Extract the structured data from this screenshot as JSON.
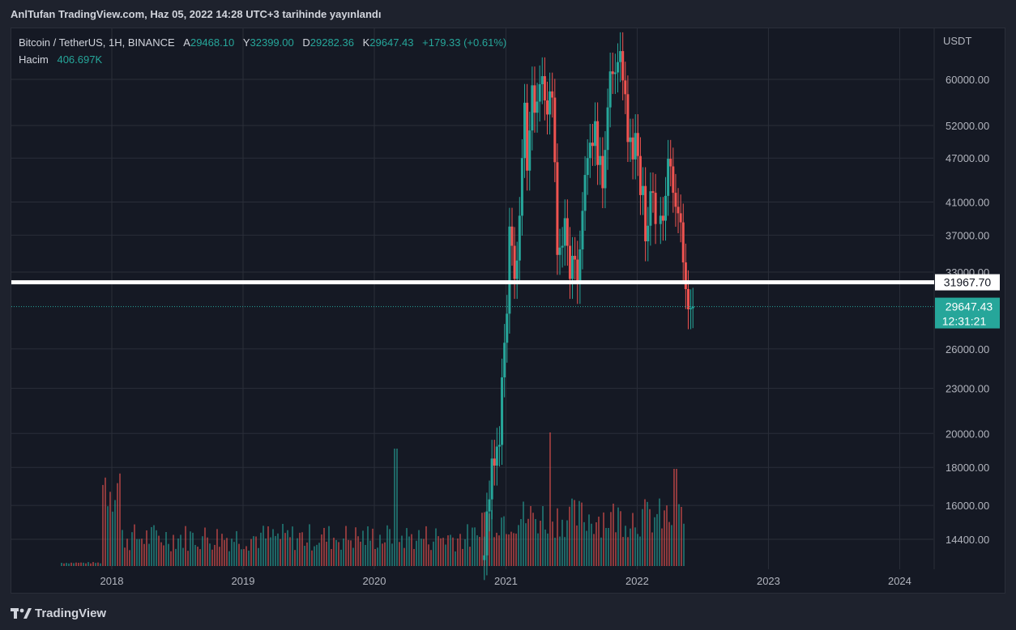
{
  "publisher_line": "AnlTufan TradingView.com, Haz 05, 2022 14:28 UTC+3 tarihinde yayınlandı",
  "legend": {
    "symbol": "Bitcoin / TetherUS, 1H, BINANCE",
    "open_label": "A",
    "open": "29468.10",
    "high_label": "Y",
    "high": "32399.00",
    "low_label": "D",
    "low": "29282.36",
    "close_label": "K",
    "close": "29647.43",
    "change": "+179.33 (+0.61%)",
    "volume_label": "Hacim",
    "volume": "406.697K"
  },
  "colors": {
    "up": "#26a69a",
    "down": "#ef5350",
    "grid": "#2a2e39",
    "text": "#b2b5be",
    "highlight_line": "#ffffff",
    "background": "#151924"
  },
  "footer": {
    "brand": "TradingView",
    "logo_icon": "tradingview-logo-icon"
  },
  "chart_data": {
    "type": "candlestick",
    "scale": "log",
    "currency": "USDT",
    "y_ticks": [
      14400,
      16000,
      18000,
      20000,
      23000,
      26000,
      33000,
      37000,
      41000,
      47000,
      52000,
      60000
    ],
    "y_tick_labels": [
      "14400.00",
      "16000.00",
      "18000.00",
      "20000.00",
      "23000.00",
      "26000.00",
      "33000.00",
      "37000.00",
      "41000.00",
      "47000.00",
      "52000.00",
      "60000.00"
    ],
    "x_ticks": [
      "2018",
      "2019",
      "2020",
      "2021",
      "2022",
      "2023",
      "2024"
    ],
    "ylim": [
      13000,
      68000
    ],
    "xlim": [
      "2017-07-15",
      "2024-06-01"
    ],
    "horizontal_line": {
      "value": 31967.7,
      "label": "31967.70"
    },
    "last_price": {
      "value": 29647.43,
      "label": "29647.43",
      "countdown": "12:31:21"
    },
    "price_series": [
      [
        "2020-10-26",
        13500
      ],
      [
        "2020-11-02",
        13700
      ],
      [
        "2020-11-09",
        15700
      ],
      [
        "2020-11-16",
        16300
      ],
      [
        "2020-11-23",
        18500
      ],
      [
        "2020-11-30",
        18100
      ],
      [
        "2020-12-07",
        19200
      ],
      [
        "2020-12-14",
        19300
      ],
      [
        "2020-12-21",
        23800
      ],
      [
        "2020-12-28",
        26500
      ],
      [
        "2021-01-04",
        29000
      ],
      [
        "2021-01-11",
        38000
      ],
      [
        "2021-01-18",
        35800
      ],
      [
        "2021-01-25",
        32300
      ],
      [
        "2021-02-01",
        34200
      ],
      [
        "2021-02-08",
        39300
      ],
      [
        "2021-02-15",
        47000
      ],
      [
        "2021-02-22",
        55800
      ],
      [
        "2021-03-01",
        45200
      ],
      [
        "2021-03-08",
        51200
      ],
      [
        "2021-03-15",
        58900
      ],
      [
        "2021-03-22",
        54100
      ],
      [
        "2021-03-29",
        56000
      ],
      [
        "2021-04-05",
        59100
      ],
      [
        "2021-04-12",
        60600
      ],
      [
        "2021-04-19",
        56200
      ],
      [
        "2021-04-26",
        53800
      ],
      [
        "2021-05-03",
        57800
      ],
      [
        "2021-05-10",
        56700
      ],
      [
        "2021-05-17",
        46400
      ],
      [
        "2021-05-24",
        34800
      ],
      [
        "2021-05-31",
        35600
      ],
      [
        "2021-06-07",
        35800
      ],
      [
        "2021-06-14",
        39000
      ],
      [
        "2021-06-21",
        35800
      ],
      [
        "2021-06-28",
        32300
      ],
      [
        "2021-07-05",
        34700
      ],
      [
        "2021-07-12",
        34300
      ],
      [
        "2021-07-19",
        31800
      ],
      [
        "2021-07-26",
        35400
      ],
      [
        "2021-08-02",
        39900
      ],
      [
        "2021-08-09",
        44600
      ],
      [
        "2021-08-16",
        47000
      ],
      [
        "2021-08-23",
        49300
      ],
      [
        "2021-08-30",
        48800
      ],
      [
        "2021-09-06",
        52700
      ],
      [
        "2021-09-13",
        46000
      ],
      [
        "2021-09-20",
        47300
      ],
      [
        "2021-09-27",
        42800
      ],
      [
        "2021-10-04",
        48200
      ],
      [
        "2021-10-11",
        55000
      ],
      [
        "2021-10-18",
        61500
      ],
      [
        "2021-10-25",
        61000
      ],
      [
        "2021-11-01",
        61300
      ],
      [
        "2021-11-08",
        63300
      ],
      [
        "2021-11-15",
        65500
      ],
      [
        "2021-11-22",
        59800
      ],
      [
        "2021-11-29",
        57300
      ],
      [
        "2021-12-06",
        49400
      ],
      [
        "2021-12-13",
        50100
      ],
      [
        "2021-12-20",
        46800
      ],
      [
        "2021-12-27",
        50800
      ],
      [
        "2022-01-03",
        47300
      ],
      [
        "2022-01-10",
        41900
      ],
      [
        "2022-01-17",
        43100
      ],
      [
        "2022-01-24",
        36300
      ],
      [
        "2022-01-31",
        38100
      ],
      [
        "2022-02-07",
        42400
      ],
      [
        "2022-02-14",
        42200
      ],
      [
        "2022-02-21",
        38300
      ],
      [
        "2022-03-07",
        39300
      ],
      [
        "2022-03-14",
        38700
      ],
      [
        "2022-03-21",
        41800
      ],
      [
        "2022-03-28",
        46900
      ],
      [
        "2022-04-04",
        45800
      ],
      [
        "2022-04-11",
        42200
      ],
      [
        "2022-04-18",
        40400
      ],
      [
        "2022-04-25",
        39600
      ],
      [
        "2022-05-02",
        38500
      ],
      [
        "2022-05-09",
        34000
      ],
      [
        "2022-05-16",
        31300
      ],
      [
        "2022-05-23",
        29400
      ],
      [
        "2022-05-30",
        29500
      ],
      [
        "2022-06-05",
        29647
      ]
    ]
  }
}
